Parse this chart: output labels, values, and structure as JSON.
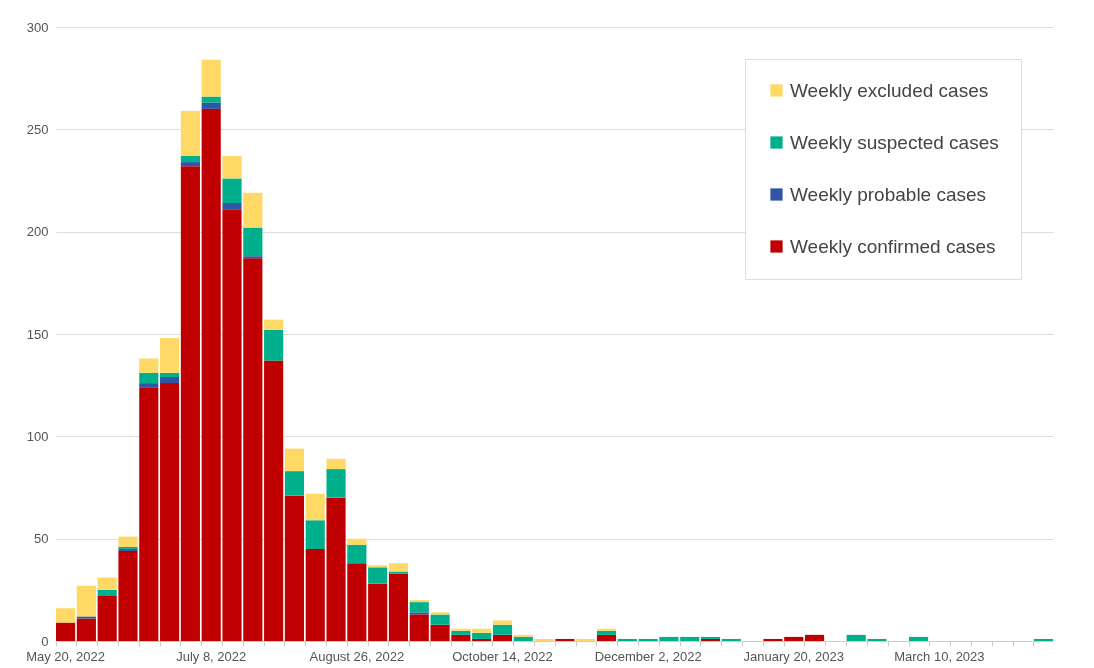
{
  "chart_data": {
    "type": "bar",
    "stacked": true,
    "categories": [
      "May 20, 2022",
      null,
      null,
      null,
      null,
      null,
      null,
      "July 8, 2022",
      null,
      null,
      null,
      null,
      null,
      null,
      "August 26, 2022",
      null,
      null,
      null,
      null,
      null,
      null,
      "October 14, 2022",
      null,
      null,
      null,
      null,
      null,
      null,
      "December 2, 2022",
      null,
      null,
      null,
      null,
      null,
      null,
      "January 20, 2023",
      null,
      null,
      null,
      null,
      null,
      null,
      "March 10, 2023",
      null,
      null,
      null,
      null,
      null
    ],
    "series": [
      {
        "name": "Weekly confirmed cases",
        "color": "#c00000",
        "values": [
          9,
          11,
          22,
          44,
          124,
          126,
          232,
          260,
          211,
          187,
          137,
          71,
          45,
          70,
          38,
          28,
          33,
          13,
          8,
          3,
          1,
          3,
          0,
          0,
          1,
          0,
          3,
          0,
          0,
          0,
          0,
          1,
          0,
          0,
          1,
          2,
          3,
          0,
          0,
          0,
          0,
          0,
          0,
          0,
          0,
          0,
          0,
          0
        ]
      },
      {
        "name": "Weekly probable cases",
        "color": "#2f55a4",
        "values": [
          0,
          1,
          0,
          1,
          2,
          3,
          2,
          3,
          3,
          1,
          0,
          0,
          0,
          0,
          0,
          0,
          0,
          1,
          0,
          0,
          0,
          0,
          0,
          0,
          0,
          0,
          0,
          0,
          0,
          0,
          0,
          0,
          0,
          0,
          0,
          0,
          0,
          0,
          0,
          0,
          0,
          0,
          0,
          0,
          0,
          0,
          0,
          0
        ]
      },
      {
        "name": "Weekly suspected cases",
        "color": "#00b08c",
        "values": [
          0,
          0,
          3,
          1,
          5,
          2,
          3,
          3,
          12,
          14,
          15,
          12,
          14,
          14,
          9,
          8,
          1,
          5,
          5,
          2,
          3,
          5,
          2,
          0,
          0,
          0,
          2,
          1,
          1,
          2,
          2,
          1,
          1,
          0,
          0,
          0,
          0,
          0,
          3,
          1,
          0,
          2,
          0,
          0,
          0,
          0,
          0,
          1
        ]
      },
      {
        "name": "Weekly excluded cases",
        "color": "#ffd966",
        "values": [
          7,
          15,
          6,
          5,
          7,
          17,
          22,
          18,
          11,
          17,
          5,
          11,
          13,
          5,
          3,
          1,
          4,
          1,
          1,
          1,
          2,
          2,
          1,
          1,
          0,
          1,
          1,
          0,
          0,
          0,
          0,
          0,
          0,
          0,
          0,
          0,
          0,
          0,
          0,
          0,
          0,
          0,
          0,
          0,
          0,
          0,
          0,
          0
        ]
      }
    ],
    "ylim": [
      0,
      300
    ],
    "yticks": [
      0,
      50,
      100,
      150,
      200,
      250,
      300
    ],
    "grid": "y",
    "legend": "top right"
  }
}
